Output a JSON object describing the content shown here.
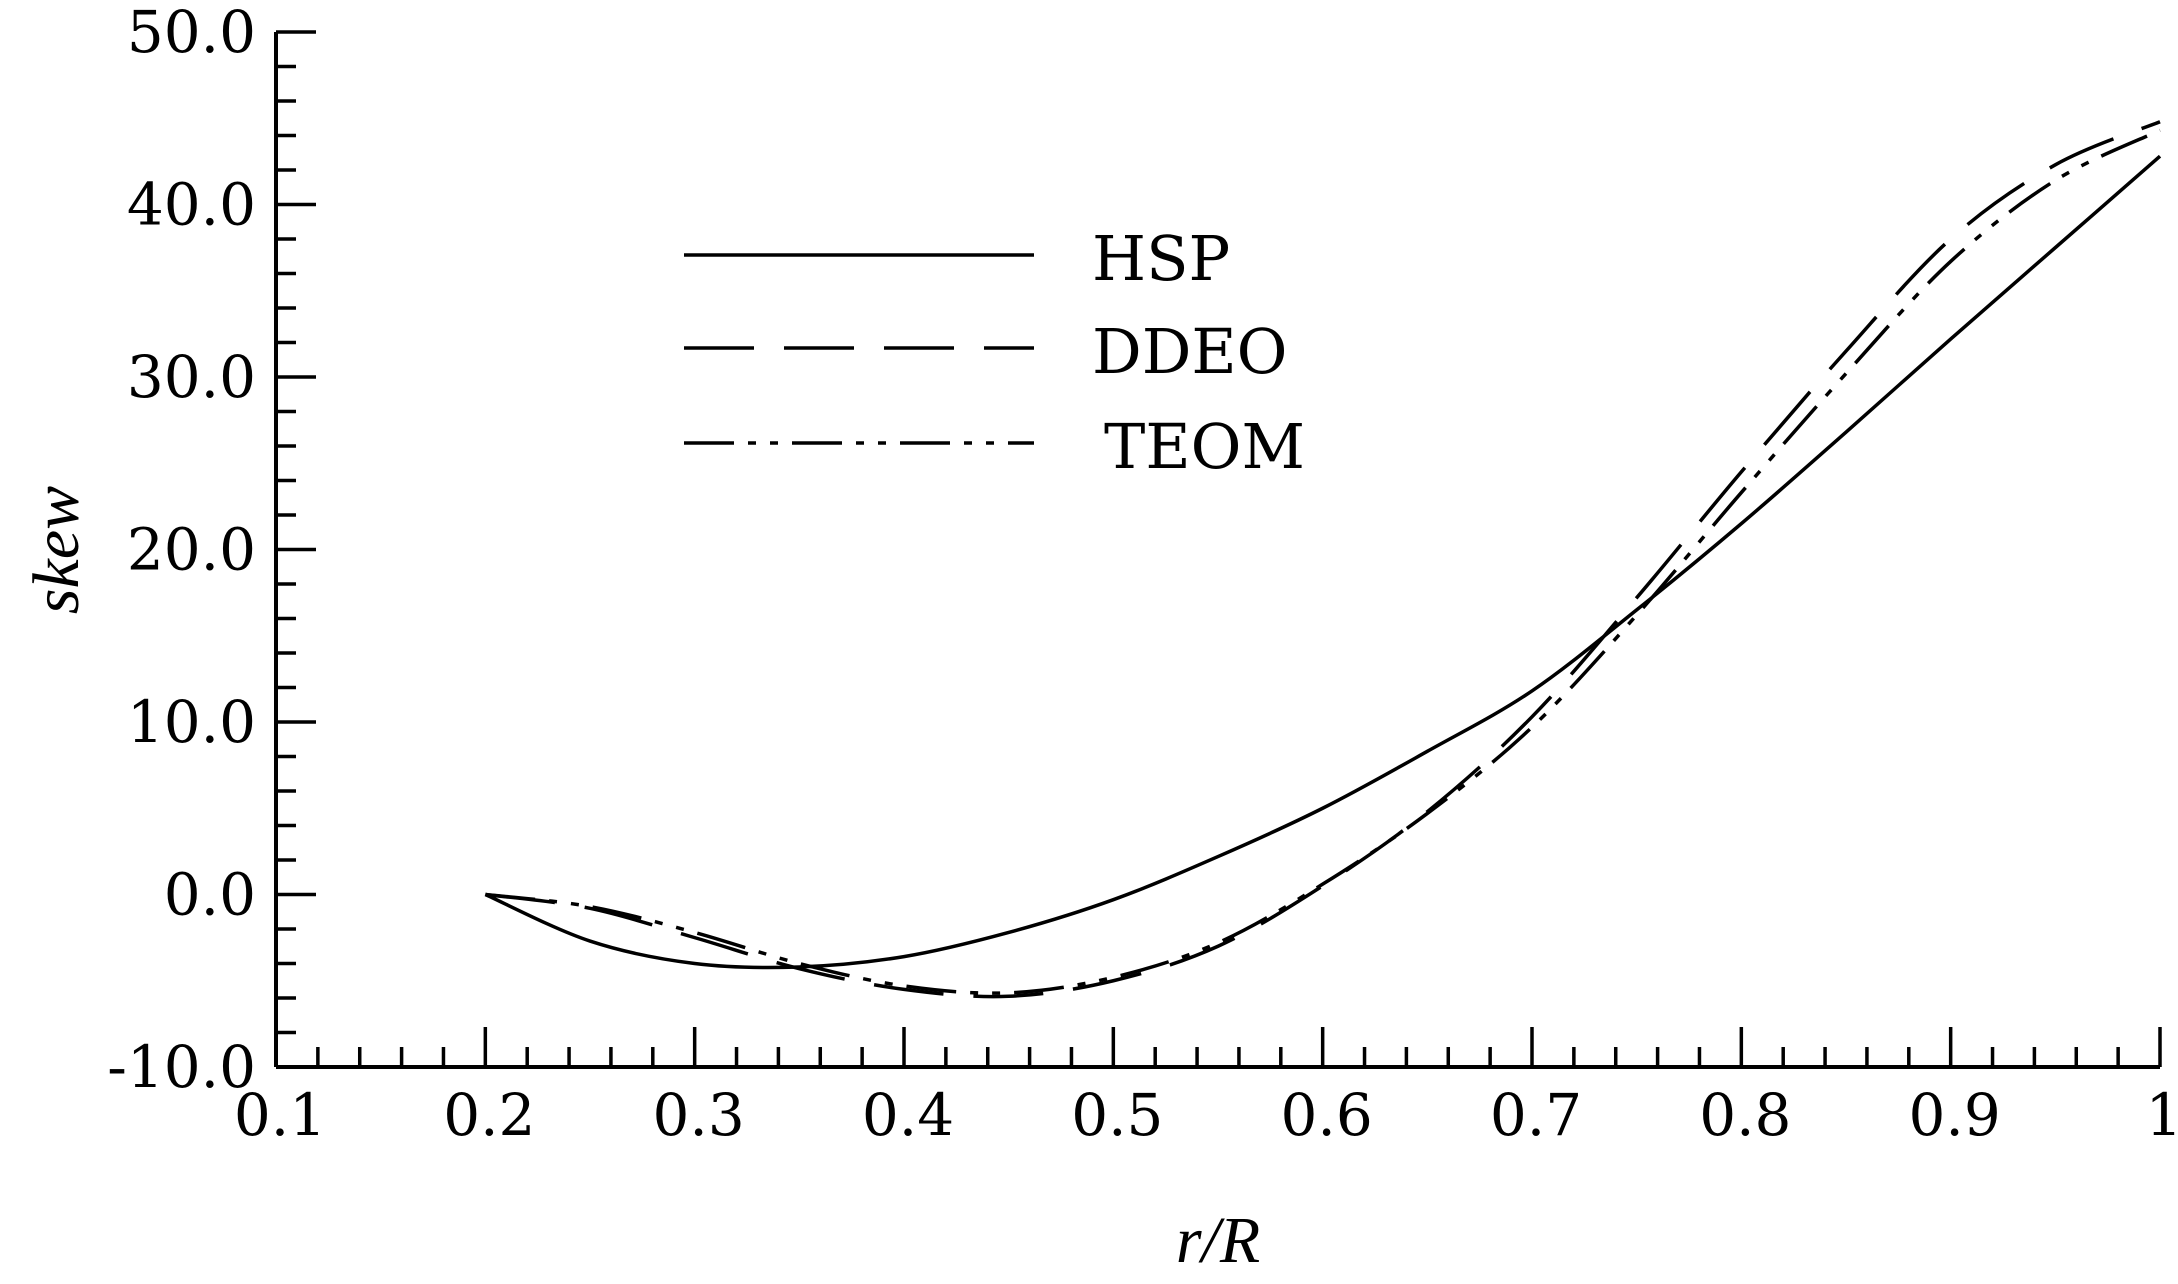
{
  "chart_data": {
    "type": "line",
    "xlabel": "r/R",
    "ylabel": "skew",
    "xlim": [
      0.1,
      1.0
    ],
    "ylim": [
      -10.0,
      50.0
    ],
    "x_ticks": [
      "0.1",
      "0.2",
      "0.3",
      "0.4",
      "0.5",
      "0.6",
      "0.7",
      "0.8",
      "0.9",
      "1"
    ],
    "y_ticks": [
      "-10.0",
      "0.0",
      "10.0",
      "20.0",
      "30.0",
      "40.0",
      "50.0"
    ],
    "x_tick_values": [
      0.1,
      0.2,
      0.3,
      0.4,
      0.5,
      0.6,
      0.7,
      0.8,
      0.9,
      1.0
    ],
    "y_tick_values": [
      -10,
      0,
      10,
      20,
      30,
      40,
      50
    ],
    "grid": false,
    "legend_position": "upper-left",
    "series": [
      {
        "name": "HSP",
        "style": "solid",
        "x": [
          0.2,
          0.25,
          0.3,
          0.35,
          0.4,
          0.45,
          0.5,
          0.55,
          0.6,
          0.65,
          0.7,
          0.75,
          0.8,
          0.85,
          0.9,
          0.95,
          1.0
        ],
        "y": [
          0.0,
          -2.7,
          -4.0,
          -4.2,
          -3.6,
          -2.2,
          -0.3,
          2.2,
          5.0,
          8.3,
          11.8,
          16.5,
          21.5,
          26.8,
          32.2,
          37.5,
          42.8
        ]
      },
      {
        "name": "DDEO",
        "style": "dashed",
        "x": [
          0.2,
          0.25,
          0.3,
          0.35,
          0.4,
          0.45,
          0.5,
          0.55,
          0.6,
          0.65,
          0.7,
          0.75,
          0.8,
          0.85,
          0.9,
          0.95,
          1.0
        ],
        "y": [
          0.0,
          -0.8,
          -2.5,
          -4.3,
          -5.5,
          -5.9,
          -5.0,
          -3.0,
          0.5,
          4.8,
          10.3,
          17.2,
          24.5,
          31.5,
          38.0,
          42.3,
          44.8
        ]
      },
      {
        "name": "TEOM",
        "style": "dash-dot-dot",
        "x": [
          0.2,
          0.25,
          0.3,
          0.35,
          0.4,
          0.45,
          0.5,
          0.55,
          0.6,
          0.65,
          0.7,
          0.75,
          0.8,
          0.85,
          0.9,
          0.95,
          1.0
        ],
        "y": [
          0.0,
          -0.7,
          -2.2,
          -4.0,
          -5.3,
          -5.7,
          -4.8,
          -2.8,
          0.6,
          4.7,
          9.7,
          16.2,
          23.3,
          30.2,
          36.7,
          41.4,
          44.3
        ]
      }
    ]
  }
}
